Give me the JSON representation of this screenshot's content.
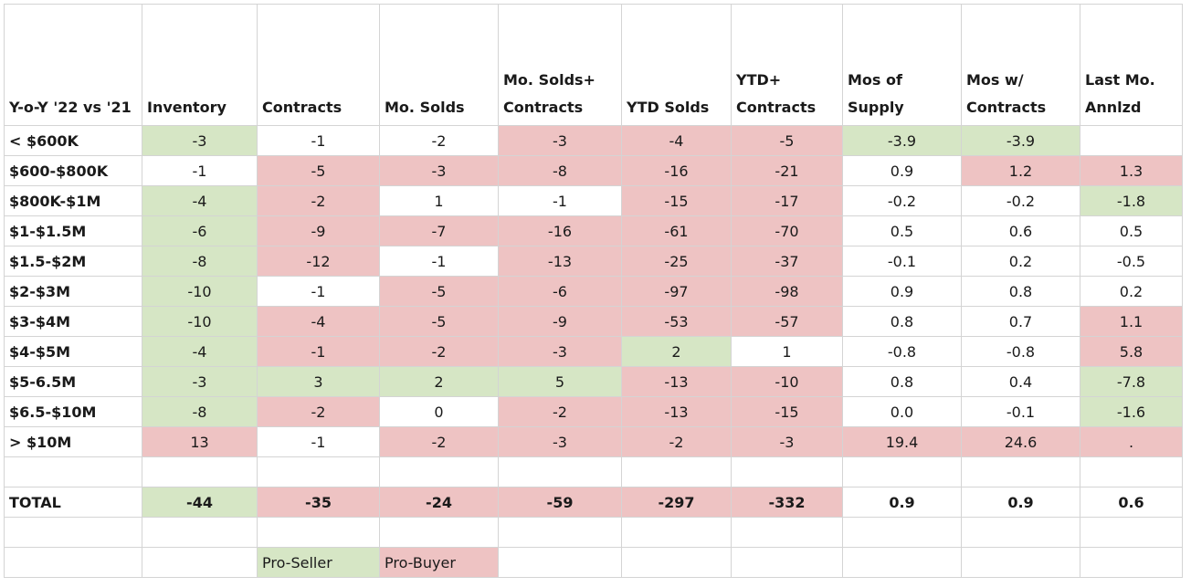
{
  "colors": {
    "pro_seller": "#d6e6c5",
    "pro_buyer": "#eec3c3"
  },
  "headers": [
    "Y-o-Y '22 vs '21",
    "Inventory",
    "Contracts",
    "Mo. Solds",
    "Mo. Solds+ Contracts",
    "YTD Solds",
    "YTD+ Contracts",
    "Mos of Supply",
    "Mos w/ Contracts",
    "Last Mo. Annlzd"
  ],
  "rows": [
    {
      "label": "< $600K",
      "values": [
        "-3",
        "-1",
        "-2",
        "-3",
        "-4",
        "-5",
        "-3.9",
        "-3.9",
        ""
      ],
      "shade": [
        "g",
        "",
        "",
        "r",
        "r",
        "r",
        "g",
        "g",
        ""
      ]
    },
    {
      "label": "$600-$800K",
      "values": [
        "-1",
        "-5",
        "-3",
        "-8",
        "-16",
        "-21",
        "0.9",
        "1.2",
        "1.3"
      ],
      "shade": [
        "",
        "r",
        "r",
        "r",
        "r",
        "r",
        "",
        "r",
        "r"
      ]
    },
    {
      "label": "$800K-$1M",
      "values": [
        "-4",
        "-2",
        "1",
        "-1",
        "-15",
        "-17",
        "-0.2",
        "-0.2",
        "-1.8"
      ],
      "shade": [
        "g",
        "r",
        "",
        "",
        "r",
        "r",
        "",
        "",
        "g"
      ]
    },
    {
      "label": "$1-$1.5M",
      "values": [
        "-6",
        "-9",
        "-7",
        "-16",
        "-61",
        "-70",
        "0.5",
        "0.6",
        "0.5"
      ],
      "shade": [
        "g",
        "r",
        "r",
        "r",
        "r",
        "r",
        "",
        "",
        ""
      ]
    },
    {
      "label": "$1.5-$2M",
      "values": [
        "-8",
        "-12",
        "-1",
        "-13",
        "-25",
        "-37",
        "-0.1",
        "0.2",
        "-0.5"
      ],
      "shade": [
        "g",
        "r",
        "",
        "r",
        "r",
        "r",
        "",
        "",
        ""
      ]
    },
    {
      "label": "$2-$3M",
      "values": [
        "-10",
        "-1",
        "-5",
        "-6",
        "-97",
        "-98",
        "0.9",
        "0.8",
        "0.2"
      ],
      "shade": [
        "g",
        "",
        "r",
        "r",
        "r",
        "r",
        "",
        "",
        ""
      ]
    },
    {
      "label": "$3-$4M",
      "values": [
        "-10",
        "-4",
        "-5",
        "-9",
        "-53",
        "-57",
        "0.8",
        "0.7",
        "1.1"
      ],
      "shade": [
        "g",
        "r",
        "r",
        "r",
        "r",
        "r",
        "",
        "",
        "r"
      ]
    },
    {
      "label": "$4-$5M",
      "values": [
        "-4",
        "-1",
        "-2",
        "-3",
        "2",
        "1",
        "-0.8",
        "-0.8",
        "5.8"
      ],
      "shade": [
        "g",
        "r",
        "r",
        "r",
        "g",
        "",
        "",
        "",
        "r"
      ]
    },
    {
      "label": "$5-6.5M",
      "values": [
        "-3",
        "3",
        "2",
        "5",
        "-13",
        "-10",
        "0.8",
        "0.4",
        "-7.8"
      ],
      "shade": [
        "g",
        "g",
        "g",
        "g",
        "r",
        "r",
        "",
        "",
        "g"
      ]
    },
    {
      "label": "$6.5-$10M",
      "values": [
        "-8",
        "-2",
        "0",
        "-2",
        "-13",
        "-15",
        "0.0",
        "-0.1",
        "-1.6"
      ],
      "shade": [
        "g",
        "r",
        "",
        "r",
        "r",
        "r",
        "",
        "",
        "g"
      ]
    },
    {
      "label": "> $10M",
      "values": [
        "13",
        "-1",
        "-2",
        "-3",
        "-2",
        "-3",
        "19.4",
        "24.6",
        "."
      ],
      "shade": [
        "r",
        "",
        "r",
        "r",
        "r",
        "r",
        "r",
        "r",
        "r"
      ]
    }
  ],
  "total": {
    "label": "TOTAL",
    "values": [
      "-44",
      "-35",
      "-24",
      "-59",
      "-297",
      "-332",
      "0.9",
      "0.9",
      "0.6"
    ],
    "shade": [
      "g",
      "r",
      "r",
      "r",
      "r",
      "r",
      "",
      "",
      ""
    ]
  },
  "legend": {
    "pro_seller": "Pro-Seller",
    "pro_buyer": "Pro-Buyer"
  }
}
